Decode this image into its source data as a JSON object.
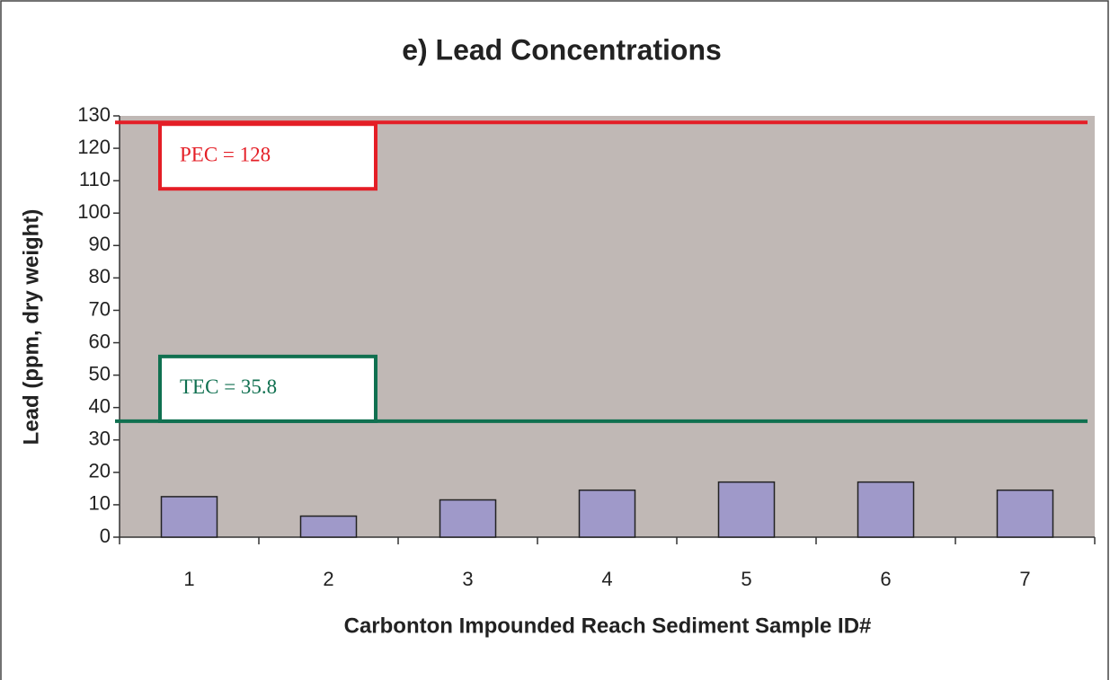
{
  "chart_data": {
    "type": "bar",
    "title": "e) Lead Concentrations",
    "x_label": "Carbonton Impounded Reach Sediment Sample ID#",
    "y_label": "Lead (ppm, dry weight)",
    "categories": [
      "1",
      "2",
      "3",
      "4",
      "5",
      "6",
      "7"
    ],
    "values": [
      12.5,
      6.5,
      11.5,
      14.5,
      17,
      17,
      14.5
    ],
    "color": "#9f99c9",
    "ylim": [
      0,
      130
    ],
    "yticks": [
      0,
      10,
      20,
      30,
      40,
      50,
      60,
      70,
      80,
      90,
      100,
      110,
      120,
      130
    ],
    "reference_lines": [
      {
        "label": "PEC = 128",
        "value": 128,
        "color": "#e41e26"
      },
      {
        "label": "TEC = 35.8",
        "value": 35.8,
        "color": "#107050"
      }
    ]
  }
}
